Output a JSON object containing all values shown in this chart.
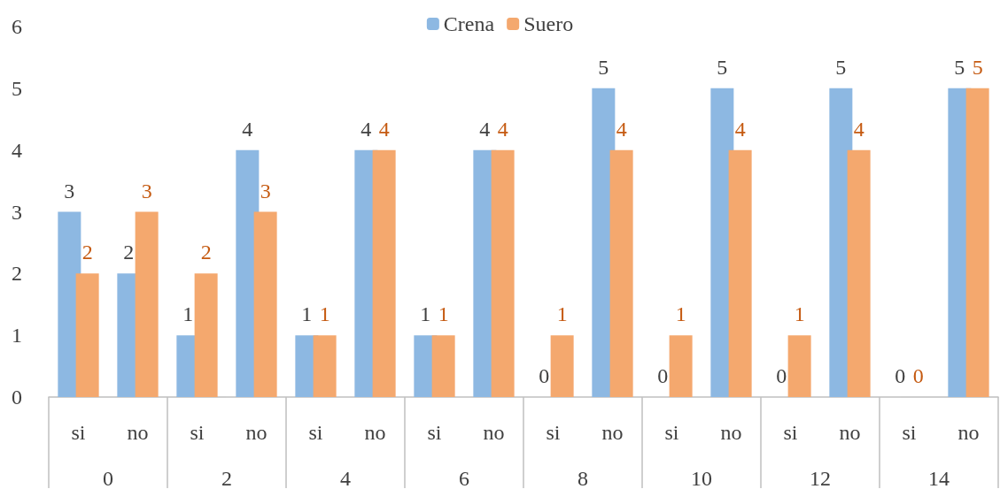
{
  "chart_data": {
    "type": "bar",
    "categories": [
      "si",
      "no",
      "si",
      "no",
      "si",
      "no",
      "si",
      "no",
      "si",
      "no",
      "si",
      "no",
      "si",
      "no",
      "si",
      "no"
    ],
    "annotations": [
      "0",
      "2",
      "4",
      "6",
      "8",
      "10",
      "12",
      "14"
    ],
    "series": [
      {
        "name": "Crena",
        "color": "#8db8e2",
        "values": [
          3,
          2,
          1,
          4,
          1,
          4,
          1,
          4,
          0,
          5,
          0,
          5,
          0,
          5,
          0,
          5
        ]
      },
      {
        "name": "Suero",
        "color": "#f4a86e",
        "values": [
          2,
          3,
          2,
          3,
          1,
          4,
          1,
          4,
          1,
          4,
          1,
          4,
          1,
          4,
          0,
          5
        ]
      }
    ],
    "ylim": [
      0,
      6
    ],
    "yticks": [
      0,
      1,
      2,
      3,
      4,
      5,
      6
    ],
    "grid": false,
    "legend": "top",
    "data_labels": true
  }
}
